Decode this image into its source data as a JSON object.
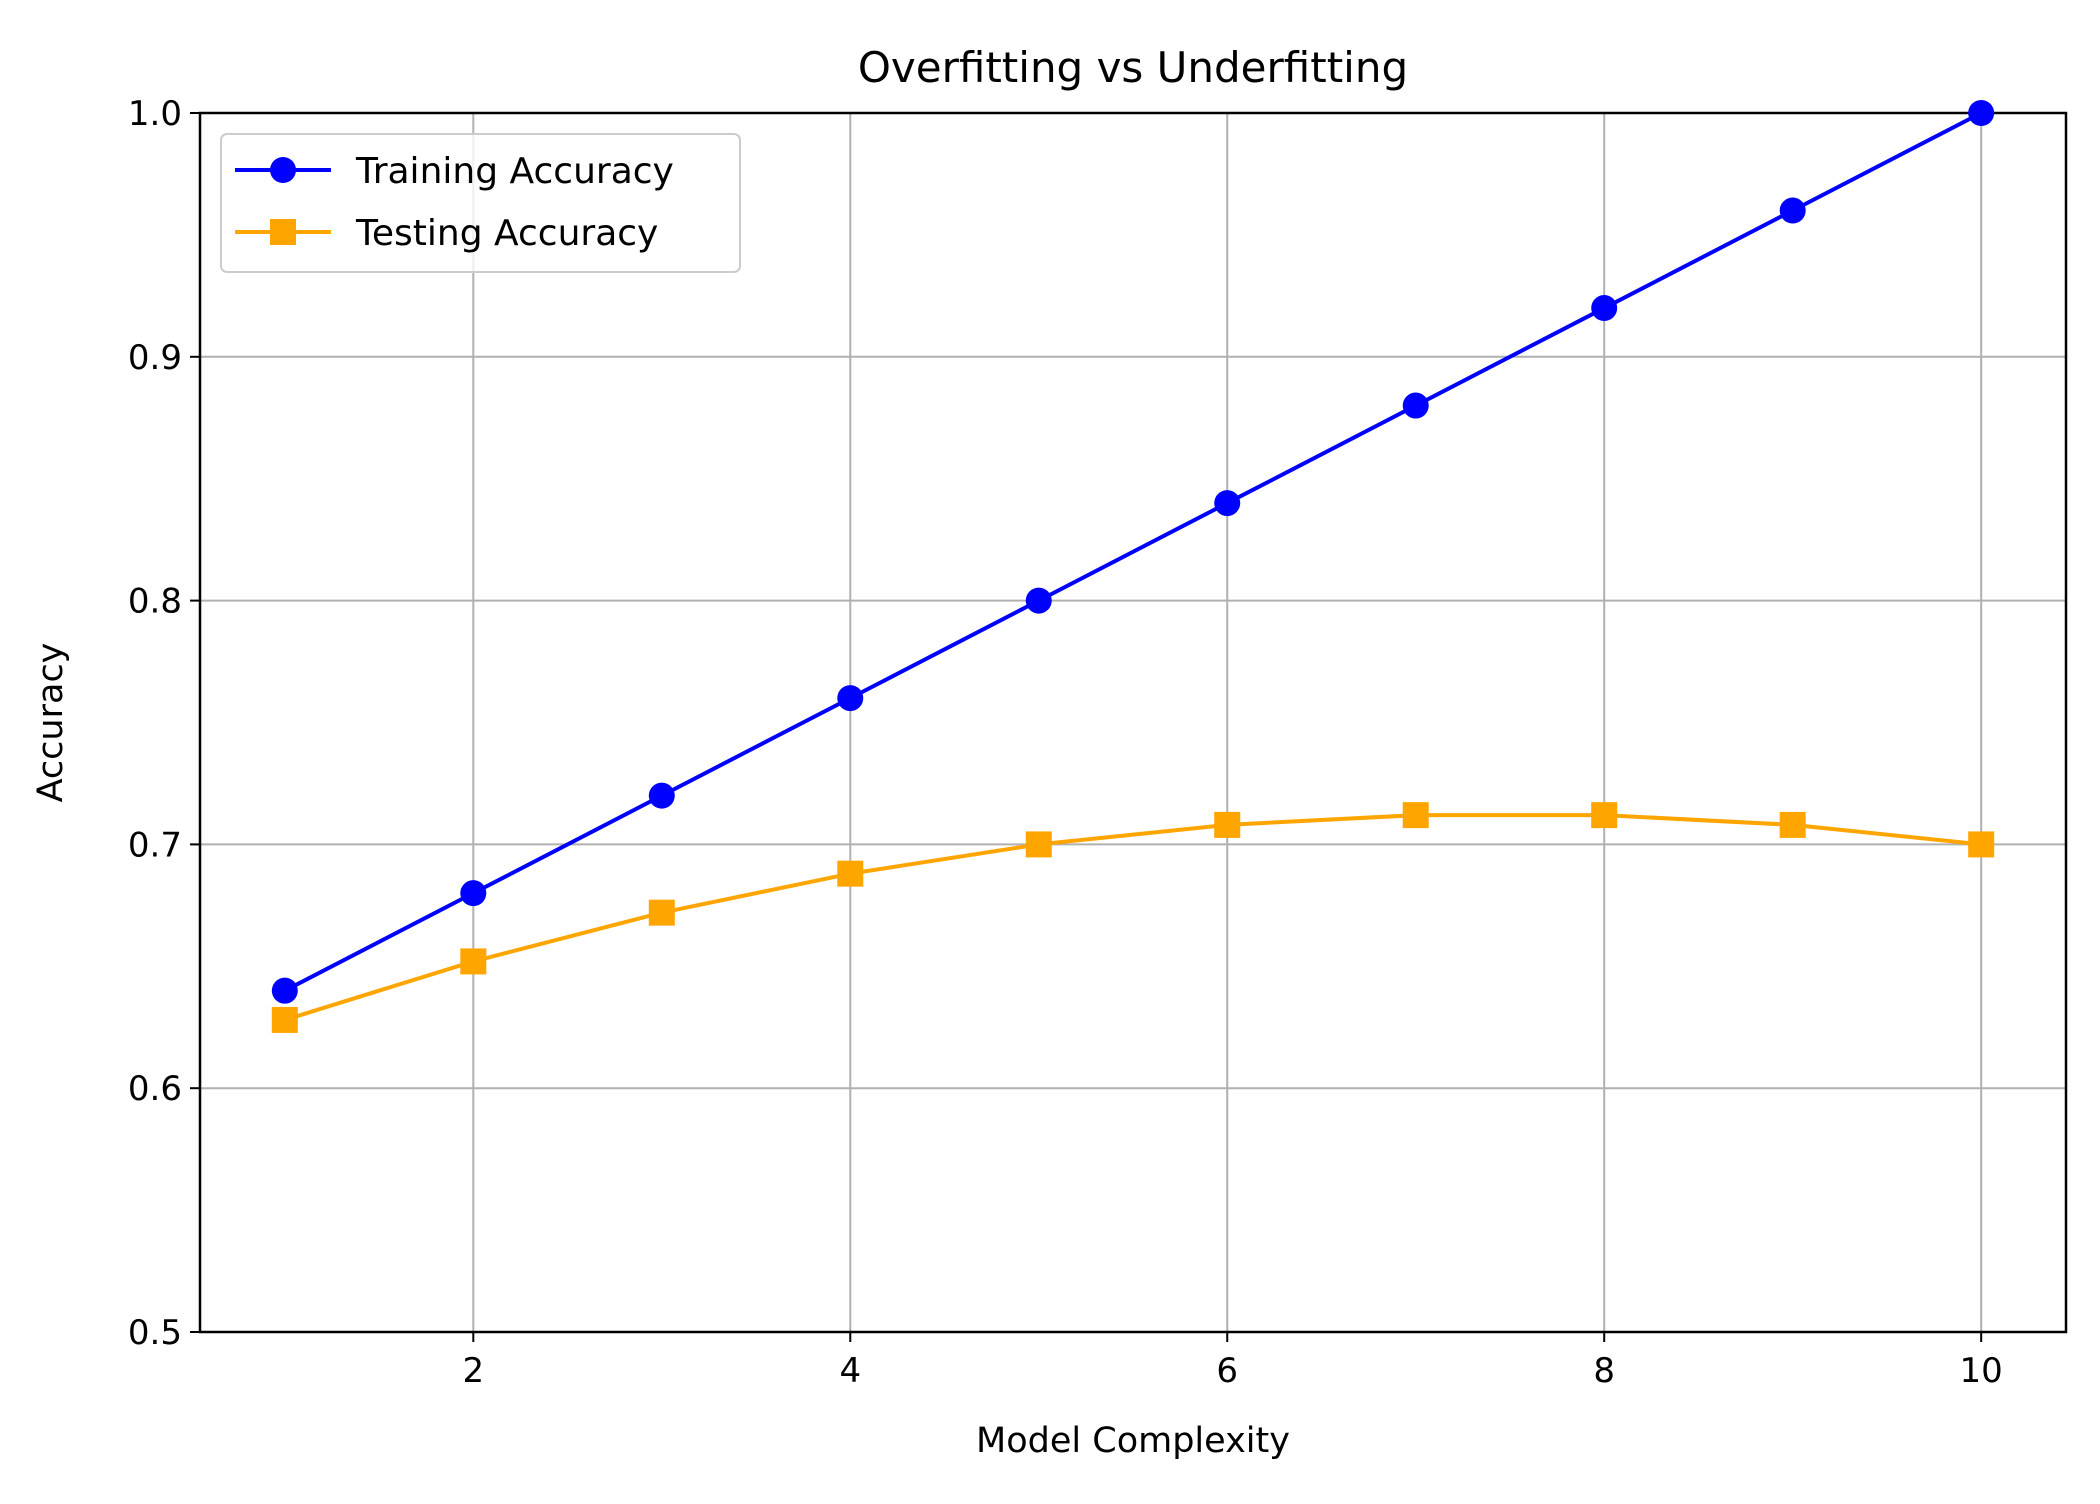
{
  "chart_data": {
    "type": "line",
    "title": "Overfitting vs Underfitting",
    "xlabel": "Model Complexity",
    "ylabel": "Accuracy",
    "x": [
      1,
      2,
      3,
      4,
      5,
      6,
      7,
      8,
      9,
      10
    ],
    "xlim": [
      0.55,
      10.45
    ],
    "ylim": [
      0.5,
      1.0
    ],
    "xticks": [
      2,
      4,
      6,
      8,
      10
    ],
    "yticks": [
      0.5,
      0.6,
      0.7,
      0.8,
      0.9,
      1.0
    ],
    "xtick_labels": [
      "2",
      "4",
      "6",
      "8",
      "10"
    ],
    "ytick_labels": [
      "0.5",
      "0.6",
      "0.7",
      "0.8",
      "0.9",
      "1.0"
    ],
    "grid": true,
    "legend_position": "upper-left",
    "series": [
      {
        "name": "Training Accuracy",
        "color": "#0000ff",
        "marker": "circle",
        "values": [
          0.64,
          0.68,
          0.72,
          0.76,
          0.8,
          0.84,
          0.88,
          0.92,
          0.96,
          1.0
        ]
      },
      {
        "name": "Testing Accuracy",
        "color": "#ffa500",
        "marker": "square",
        "values": [
          0.628,
          0.652,
          0.672,
          0.688,
          0.7,
          0.708,
          0.712,
          0.712,
          0.708,
          0.7
        ]
      }
    ]
  }
}
